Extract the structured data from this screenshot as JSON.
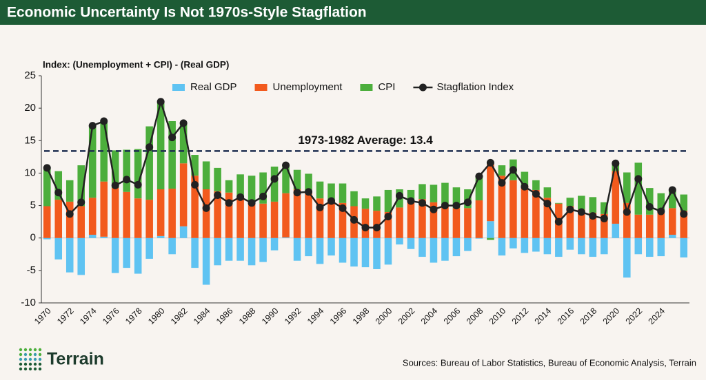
{
  "title": "Economic Uncertainty Is Not 1970s-Style Stagflation",
  "brand": "Terrain",
  "source": "Sources: Bureau of Labor Statistics, Bureau of Economic Analysis, Terrain",
  "chart_data": {
    "type": "bar",
    "stacked": true,
    "y_label": "Index: (Unemployment + CPI) - (Real GDP)",
    "categories": [
      "1970",
      null,
      "1972",
      null,
      "1974",
      null,
      "1976",
      null,
      "1978",
      null,
      "1980",
      null,
      "1982",
      null,
      "1984",
      null,
      "1986",
      null,
      "1988",
      null,
      "1990",
      null,
      "1992",
      null,
      "1994",
      null,
      "1996",
      null,
      "1998",
      null,
      "2000",
      null,
      "2002",
      null,
      "2004",
      null,
      "2006",
      null,
      "2008",
      null,
      "2010",
      null,
      "2012",
      null,
      "2014",
      null,
      "2016",
      null,
      "2018",
      null,
      "2020",
      null,
      "2022",
      null,
      "2024",
      null,
      null
    ],
    "series": [
      {
        "name": "Real GDP",
        "color": "#5fc3f2",
        "values": [
          -0.2,
          -3.3,
          -5.3,
          -5.7,
          0.5,
          0.2,
          -5.4,
          -4.6,
          -5.5,
          -3.2,
          0.3,
          -2.5,
          1.8,
          -4.6,
          -7.2,
          -4.2,
          -3.5,
          -3.5,
          -4.2,
          -3.7,
          -1.9,
          0.1,
          -3.5,
          -2.8,
          -4.0,
          -2.7,
          -3.8,
          -4.4,
          -4.5,
          -4.8,
          -4.1,
          -1.0,
          -1.7,
          -2.9,
          -3.8,
          -3.5,
          -2.8,
          -2.0,
          -0.1,
          2.6,
          -2.7,
          -1.6,
          -2.3,
          -2.1,
          -2.5,
          -2.9,
          -1.8,
          -2.5,
          -2.9,
          -2.5,
          2.2,
          -6.1,
          -2.5,
          -2.9,
          -2.8,
          0.5,
          -3.0
        ]
      },
      {
        "name": "Unemployment",
        "color": "#f25a1d",
        "values": [
          4.9,
          5.9,
          5.6,
          4.9,
          5.7,
          8.5,
          7.7,
          7.1,
          6.1,
          5.9,
          7.2,
          7.6,
          9.7,
          9.6,
          7.5,
          7.2,
          7.0,
          6.2,
          5.5,
          5.3,
          5.6,
          6.8,
          7.5,
          6.9,
          6.1,
          5.6,
          5.4,
          4.9,
          4.5,
          4.2,
          4.0,
          4.7,
          5.8,
          6.0,
          5.5,
          5.1,
          4.6,
          4.6,
          5.8,
          9.0,
          9.6,
          8.9,
          8.1,
          7.4,
          6.2,
          5.3,
          4.9,
          4.4,
          3.9,
          3.7,
          8.1,
          5.4,
          3.6,
          3.6,
          4.0,
          4.1,
          4.2
        ]
      },
      {
        "name": "CPI",
        "color": "#4cae3c",
        "values": [
          5.9,
          4.4,
          3.3,
          6.3,
          11.1,
          9.2,
          5.8,
          6.5,
          7.6,
          11.3,
          13.5,
          10.4,
          6.2,
          3.2,
          4.3,
          3.6,
          1.9,
          3.6,
          4.1,
          4.8,
          5.4,
          4.2,
          3.0,
          3.0,
          2.6,
          2.8,
          3.0,
          2.3,
          1.6,
          2.2,
          3.4,
          2.8,
          1.6,
          2.3,
          2.7,
          3.4,
          3.2,
          2.9,
          3.8,
          -0.3,
          1.6,
          3.2,
          2.1,
          1.5,
          1.6,
          0.1,
          1.3,
          2.1,
          2.4,
          1.8,
          1.2,
          4.7,
          8.0,
          4.1,
          2.9,
          2.8,
          2.5
        ]
      },
      {
        "name": "Stagflation Index",
        "type": "line",
        "color": "#222222",
        "values": [
          10.8,
          7.0,
          3.7,
          5.5,
          17.3,
          18.0,
          8.1,
          9.0,
          8.2,
          14.0,
          21.0,
          15.5,
          17.7,
          8.2,
          4.6,
          6.6,
          5.4,
          6.3,
          5.4,
          6.4,
          9.1,
          11.2,
          7.0,
          7.1,
          4.7,
          5.7,
          4.6,
          2.8,
          1.6,
          1.6,
          3.3,
          6.5,
          5.7,
          5.4,
          4.4,
          5.0,
          5.0,
          5.5,
          9.5,
          11.6,
          8.5,
          10.5,
          7.9,
          6.8,
          5.3,
          2.5,
          4.4,
          4.0,
          3.4,
          3.0,
          11.5,
          4.0,
          9.1,
          4.8,
          4.1,
          7.4,
          3.7
        ]
      }
    ],
    "reference_line": {
      "value": 13.4,
      "label": "1973-1982 Average: 13.4",
      "color": "#1d2e4f"
    },
    "ylim": [
      -10,
      25
    ],
    "yticks": [
      -10,
      -5,
      0,
      5,
      10,
      15,
      20,
      25
    ],
    "legend": "top"
  }
}
